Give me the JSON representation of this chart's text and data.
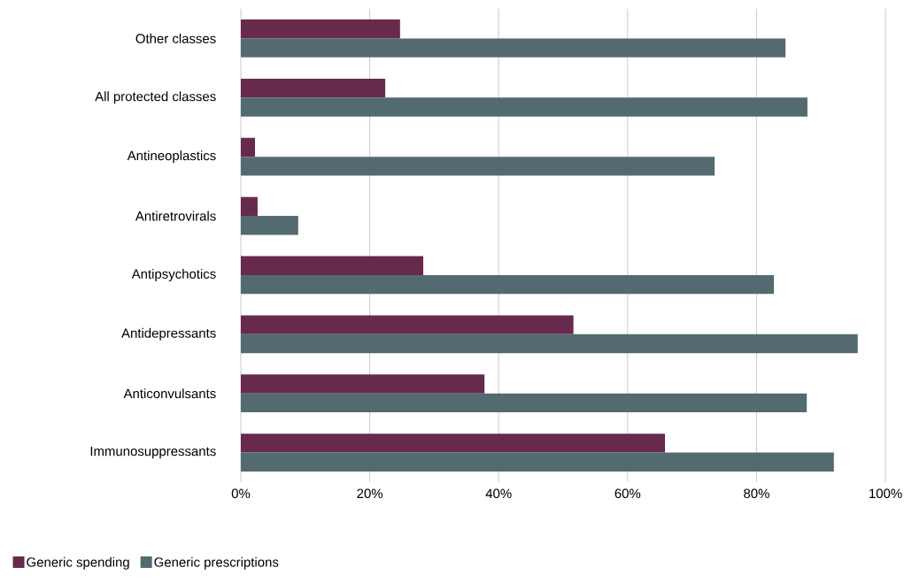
{
  "chart_data": {
    "type": "bar",
    "orientation": "horizontal",
    "categories": [
      "Other classes",
      "All protected classes",
      "Antineoplastics",
      "Antiretrovirals",
      "Antipsychotics",
      "Antidepressants",
      "Anticonvulsants",
      "Immunosuppressants"
    ],
    "series": [
      {
        "name": "Generic spending",
        "color": "#672a4c",
        "values": [
          24.7,
          22.4,
          2.2,
          2.6,
          28.3,
          51.6,
          37.8,
          65.8
        ]
      },
      {
        "name": "Generic prescriptions",
        "color": "#536b70",
        "values": [
          84.5,
          87.9,
          73.5,
          8.9,
          82.7,
          95.7,
          87.8,
          92.0
        ]
      }
    ],
    "xlim": [
      0,
      100
    ],
    "xticks": [
      {
        "value": 0,
        "label": "0%"
      },
      {
        "value": 20,
        "label": "20%"
      },
      {
        "value": 40,
        "label": "40%"
      },
      {
        "value": 60,
        "label": "60%"
      },
      {
        "value": 80,
        "label": "80%"
      },
      {
        "value": 100,
        "label": "100%"
      }
    ],
    "grid": "x",
    "legend": "bottom left"
  }
}
